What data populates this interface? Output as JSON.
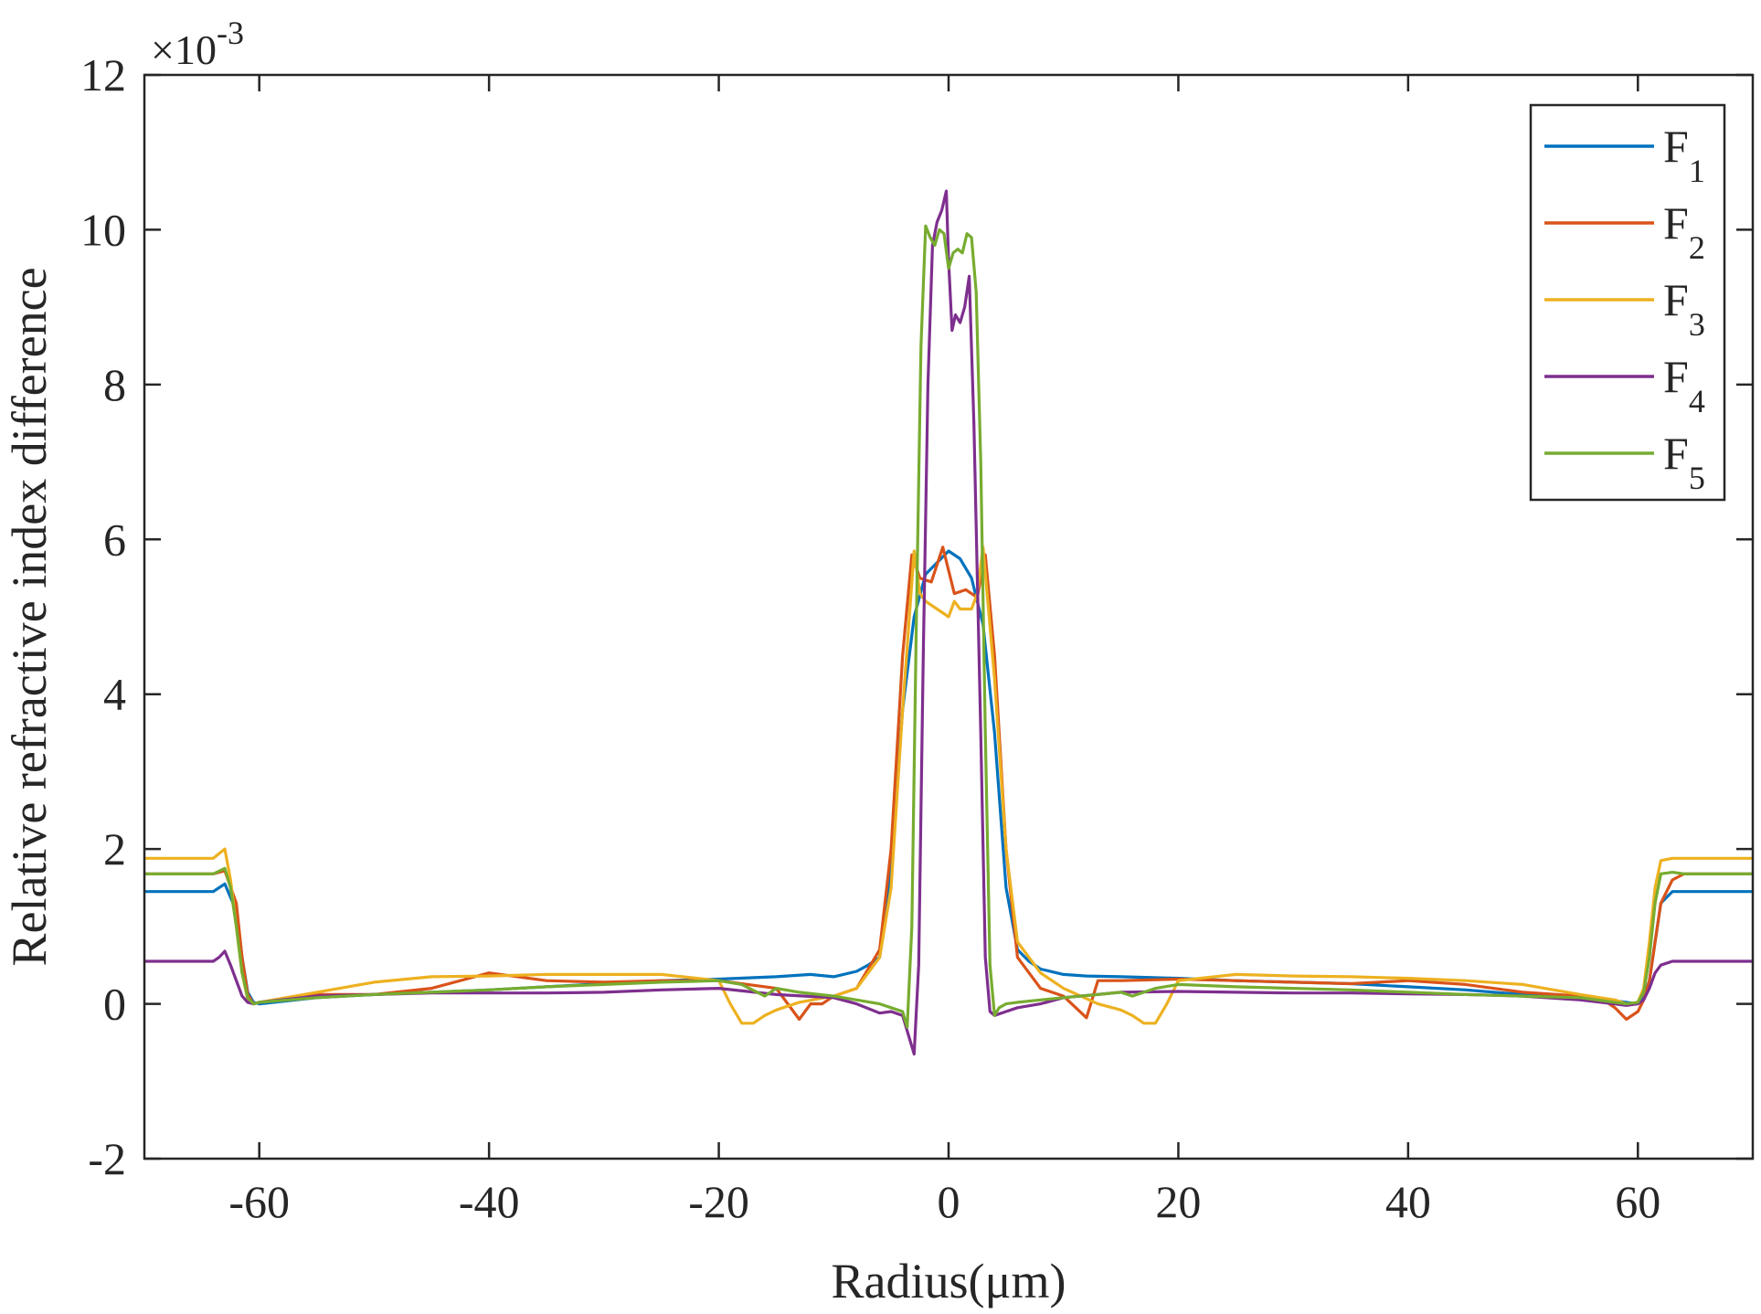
{
  "chart_data": {
    "type": "line",
    "title": "",
    "xlabel": "Radius(μm)",
    "ylabel": "Relative refractive index difference",
    "y_multiplier_label": "×10",
    "y_multiplier_exponent": "-3",
    "xlim": [
      -70,
      70
    ],
    "ylim": [
      -2,
      12
    ],
    "xticks": [
      -60,
      -40,
      -20,
      0,
      20,
      40,
      60
    ],
    "xtick_labels": [
      "-60",
      "-40",
      "-20",
      "0",
      "20",
      "40",
      "60"
    ],
    "yticks": [
      -2,
      0,
      2,
      4,
      6,
      8,
      10,
      12
    ],
    "ytick_labels": [
      "-2",
      "0",
      "2",
      "4",
      "6",
      "8",
      "10",
      "12"
    ],
    "grid": false,
    "legend_position": "top-right",
    "series": [
      {
        "name": "F",
        "subscript": "1",
        "color": "#0072BD",
        "x": [
          -70,
          -64,
          -63,
          -62,
          -61.5,
          -61,
          -60.5,
          -60,
          -55,
          -50,
          -45,
          -40,
          -35,
          -30,
          -25,
          -20,
          -15,
          -12,
          -10,
          -8,
          -7,
          -6,
          -5,
          -4,
          -3,
          -2,
          -1,
          0,
          1,
          2,
          3,
          4,
          5,
          6,
          7,
          8,
          10,
          12,
          15,
          20,
          25,
          30,
          35,
          40,
          45,
          50,
          55,
          58,
          59,
          60,
          60.5,
          61,
          61.5,
          62,
          63,
          64,
          70
        ],
        "y": [
          1.45,
          1.45,
          1.55,
          1.2,
          0.6,
          0.15,
          0.02,
          0.0,
          0.08,
          0.12,
          0.15,
          0.18,
          0.22,
          0.26,
          0.3,
          0.32,
          0.35,
          0.38,
          0.35,
          0.42,
          0.5,
          0.6,
          1.8,
          3.8,
          5.0,
          5.55,
          5.7,
          5.85,
          5.75,
          5.5,
          4.9,
          3.5,
          1.5,
          0.7,
          0.55,
          0.45,
          0.38,
          0.36,
          0.35,
          0.33,
          0.3,
          0.28,
          0.26,
          0.22,
          0.18,
          0.12,
          0.08,
          0.04,
          0.02,
          0.0,
          0.08,
          0.3,
          0.8,
          1.3,
          1.45,
          1.45,
          1.45
        ]
      },
      {
        "name": "F",
        "subscript": "2",
        "color": "#D95319",
        "x": [
          -70,
          -64,
          -63,
          -62,
          -61.5,
          -61,
          -60.5,
          -60,
          -55,
          -50,
          -45,
          -40,
          -35,
          -30,
          -25,
          -20,
          -15,
          -13,
          -12,
          -11,
          -10,
          -8,
          -6,
          -5,
          -4,
          -3.2,
          -2.5,
          -1.5,
          -0.5,
          0,
          0.5,
          1.5,
          2.5,
          3.2,
          4,
          5,
          6,
          8,
          10,
          12,
          13,
          15,
          20,
          25,
          30,
          35,
          40,
          45,
          50,
          55,
          57,
          58,
          59,
          60,
          60.5,
          61,
          61.5,
          62,
          63,
          64,
          70
        ],
        "y": [
          1.68,
          1.68,
          1.72,
          1.3,
          0.6,
          0.12,
          0.0,
          0.02,
          0.12,
          0.12,
          0.2,
          0.4,
          0.3,
          0.28,
          0.3,
          0.3,
          0.2,
          -0.2,
          0.0,
          0.0,
          0.1,
          0.2,
          0.7,
          2.0,
          4.5,
          5.8,
          5.5,
          5.45,
          5.9,
          5.6,
          5.3,
          5.35,
          5.25,
          5.8,
          4.5,
          2.0,
          0.6,
          0.2,
          0.1,
          -0.18,
          0.3,
          0.3,
          0.32,
          0.3,
          0.28,
          0.26,
          0.3,
          0.25,
          0.15,
          0.1,
          0.05,
          -0.05,
          -0.2,
          -0.1,
          0.05,
          0.3,
          0.8,
          1.3,
          1.6,
          1.68,
          1.68
        ]
      },
      {
        "name": "F",
        "subscript": "3",
        "color": "#EDB120",
        "x": [
          -70,
          -64,
          -63,
          -62.5,
          -62,
          -61.5,
          -61,
          -60.5,
          -60,
          -55,
          -50,
          -45,
          -40,
          -35,
          -30,
          -25,
          -20,
          -19,
          -18,
          -17,
          -16,
          -15,
          -13,
          -10,
          -8,
          -6,
          -5,
          -4,
          -3,
          -2.5,
          -2,
          -1,
          0,
          0.5,
          1,
          2,
          2.5,
          3,
          4,
          5,
          6,
          8,
          10,
          13,
          15,
          16,
          17,
          18,
          19,
          20,
          25,
          30,
          35,
          40,
          45,
          50,
          55,
          58,
          59,
          60,
          60.5,
          61,
          61.5,
          62,
          63,
          64,
          70
        ],
        "y": [
          1.88,
          1.88,
          2.0,
          1.6,
          1.0,
          0.4,
          0.05,
          0.0,
          0.02,
          0.15,
          0.28,
          0.35,
          0.36,
          0.38,
          0.38,
          0.38,
          0.3,
          0.0,
          -0.25,
          -0.25,
          -0.15,
          -0.08,
          0.02,
          0.1,
          0.2,
          0.6,
          1.5,
          3.8,
          5.85,
          5.3,
          5.2,
          5.1,
          5.0,
          5.2,
          5.1,
          5.1,
          5.3,
          5.9,
          4.2,
          2.0,
          0.8,
          0.4,
          0.2,
          0.0,
          -0.08,
          -0.15,
          -0.25,
          -0.25,
          0.0,
          0.3,
          0.38,
          0.36,
          0.35,
          0.33,
          0.3,
          0.25,
          0.12,
          0.05,
          0.0,
          0.02,
          0.2,
          0.8,
          1.5,
          1.85,
          1.88,
          1.88,
          1.88
        ]
      },
      {
        "name": "F",
        "subscript": "4",
        "color": "#7E2F8E",
        "x": [
          -70,
          -64,
          -63.5,
          -63,
          -62.5,
          -62,
          -61.5,
          -61,
          -60.5,
          -60,
          -55,
          -50,
          -45,
          -40,
          -35,
          -30,
          -25,
          -20,
          -15,
          -10,
          -8,
          -6,
          -5,
          -4,
          -3.5,
          -3,
          -2.6,
          -2.2,
          -1.8,
          -1.4,
          -1,
          -0.6,
          -0.2,
          0,
          0.3,
          0.6,
          1,
          1.4,
          1.8,
          2.2,
          2.8,
          3.2,
          3.6,
          4,
          5,
          6,
          8,
          10,
          15,
          20,
          25,
          30,
          35,
          40,
          45,
          50,
          55,
          58,
          59,
          60,
          60.5,
          61,
          61.5,
          62,
          63,
          64,
          70
        ],
        "y": [
          0.55,
          0.55,
          0.6,
          0.68,
          0.5,
          0.3,
          0.1,
          0.02,
          0.0,
          0.02,
          0.1,
          0.12,
          0.14,
          0.14,
          0.14,
          0.15,
          0.18,
          0.2,
          0.12,
          0.08,
          0.0,
          -0.12,
          -0.1,
          -0.15,
          -0.4,
          -0.65,
          0.5,
          4.5,
          8.0,
          9.8,
          10.1,
          10.25,
          10.5,
          9.6,
          8.7,
          8.9,
          8.8,
          9.0,
          9.4,
          7.5,
          3.5,
          0.6,
          -0.1,
          -0.15,
          -0.1,
          -0.05,
          0.0,
          0.08,
          0.15,
          0.16,
          0.15,
          0.14,
          0.14,
          0.13,
          0.12,
          0.1,
          0.05,
          0.0,
          -0.02,
          0.0,
          0.05,
          0.2,
          0.4,
          0.5,
          0.55,
          0.55,
          0.55
        ]
      },
      {
        "name": "F",
        "subscript": "5",
        "color": "#77AC30",
        "x": [
          -70,
          -64,
          -63,
          -62.5,
          -62,
          -61.5,
          -61,
          -60.5,
          -60,
          -55,
          -50,
          -45,
          -40,
          -35,
          -30,
          -25,
          -20,
          -18,
          -16,
          -15,
          -13,
          -10,
          -8,
          -6,
          -5,
          -4,
          -3.6,
          -3.2,
          -2.8,
          -2.4,
          -2,
          -1.6,
          -1.2,
          -0.8,
          -0.4,
          0,
          0.4,
          0.8,
          1.2,
          1.6,
          2,
          2.4,
          2.8,
          3.2,
          3.6,
          4,
          4.4,
          5,
          6,
          8,
          10,
          13,
          15,
          16,
          18,
          20,
          25,
          30,
          35,
          40,
          45,
          50,
          55,
          58,
          59,
          60,
          60.5,
          61,
          61.5,
          62,
          63,
          64,
          70
        ],
        "y": [
          1.68,
          1.68,
          1.75,
          1.5,
          1.0,
          0.4,
          0.08,
          0.0,
          0.02,
          0.08,
          0.12,
          0.15,
          0.18,
          0.22,
          0.25,
          0.28,
          0.3,
          0.25,
          0.1,
          0.2,
          0.15,
          0.1,
          0.05,
          0.0,
          -0.05,
          -0.1,
          -0.3,
          1.0,
          5.0,
          8.5,
          10.05,
          9.9,
          9.8,
          10.0,
          9.95,
          9.5,
          9.7,
          9.75,
          9.7,
          9.95,
          9.9,
          9.2,
          7.0,
          3.5,
          0.5,
          -0.15,
          -0.05,
          0.0,
          0.02,
          0.05,
          0.08,
          0.12,
          0.15,
          0.1,
          0.2,
          0.25,
          0.22,
          0.2,
          0.18,
          0.15,
          0.12,
          0.1,
          0.08,
          0.02,
          0.0,
          0.02,
          0.15,
          0.6,
          1.3,
          1.68,
          1.7,
          1.68,
          1.68
        ]
      }
    ]
  }
}
